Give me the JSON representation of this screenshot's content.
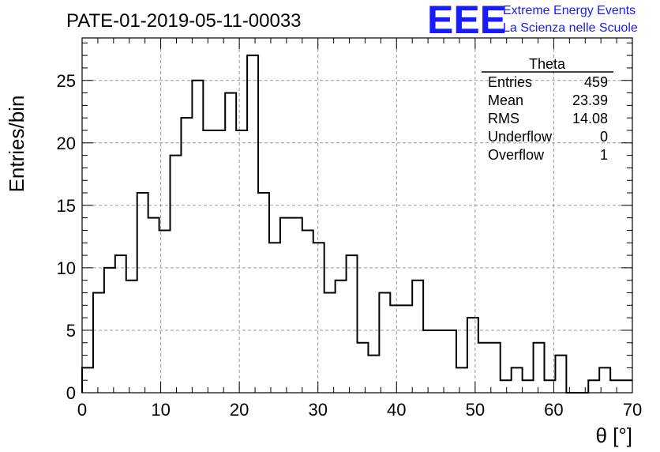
{
  "chart_data": {
    "type": "histogram",
    "title": "PATE-01-2019-05-11-00033",
    "xlabel": "θ [°]",
    "ylabel": "Entries/bin",
    "xlim": [
      0,
      70
    ],
    "ylim": [
      0,
      28.4
    ],
    "xticks": [
      0,
      10,
      20,
      30,
      40,
      50,
      60,
      70
    ],
    "yticks": [
      0,
      5,
      10,
      15,
      20,
      25
    ],
    "grid": true,
    "bin_width": 1.4,
    "values": [
      2,
      8,
      10,
      11,
      9,
      16,
      14,
      13,
      19,
      22,
      25,
      21,
      21,
      24,
      21,
      27,
      16,
      12,
      14,
      14,
      13,
      12,
      8,
      9,
      11,
      4,
      3,
      8,
      7,
      7,
      9,
      5,
      5,
      5,
      2,
      6,
      4,
      4,
      1,
      2,
      1,
      4,
      1,
      3,
      0,
      0,
      1,
      2,
      1,
      1
    ],
    "color": "#000000",
    "stats_box": {
      "title": "Theta",
      "rows": [
        {
          "label": "Entries",
          "value": "459"
        },
        {
          "label": "Mean",
          "value": "23.39"
        },
        {
          "label": "RMS",
          "value": "14.08"
        },
        {
          "label": "Underflow",
          "value": "0"
        },
        {
          "label": "Overflow",
          "value": "1"
        }
      ]
    }
  },
  "logo": {
    "letters": "EEE",
    "line1": "Extreme Energy Events",
    "line2": "La Scienza nelle Scuole",
    "color": "#1a1aff"
  }
}
